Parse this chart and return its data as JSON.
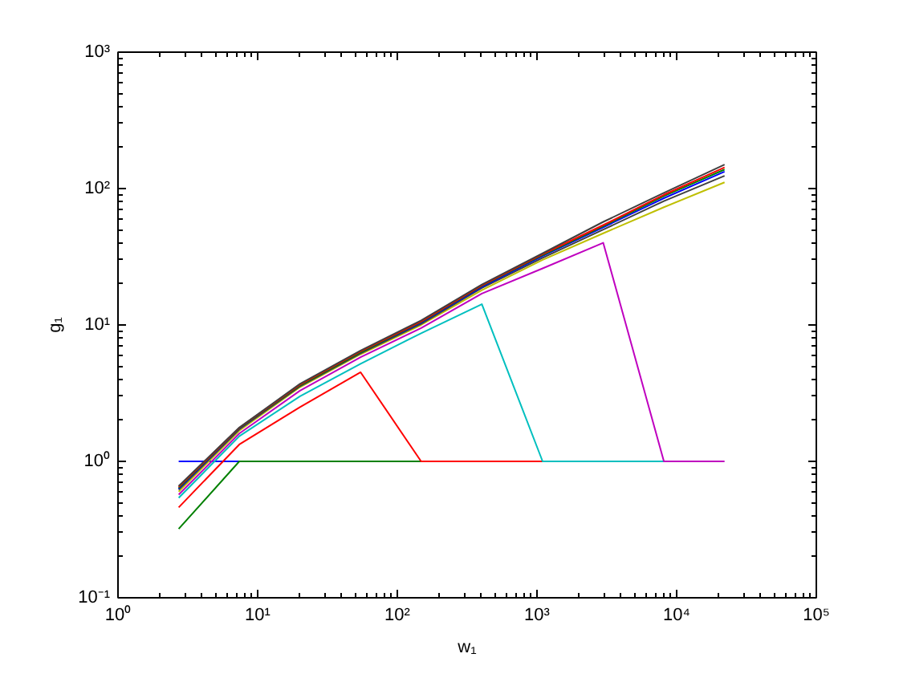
{
  "chart_data": {
    "type": "line",
    "xlabel": "w₁",
    "ylabel": "g₁",
    "log": "xy",
    "grid": false,
    "line_style": "solid",
    "xlim": [
      1,
      100000
    ],
    "ylim": [
      0.1,
      1000
    ],
    "xticks": [
      {
        "value": 1,
        "label": "10⁰"
      },
      {
        "value": 10,
        "label": "10¹"
      },
      {
        "value": 100,
        "label": "10²"
      },
      {
        "value": 1000,
        "label": "10³"
      },
      {
        "value": 10000,
        "label": "10⁴"
      },
      {
        "value": 100000,
        "label": "10⁵"
      }
    ],
    "yticks": [
      {
        "value": 0.1,
        "label": "10⁻¹"
      },
      {
        "value": 1,
        "label": "10⁰"
      },
      {
        "value": 10,
        "label": "10¹"
      },
      {
        "value": 100,
        "label": "10²"
      },
      {
        "value": 1000,
        "label": "10³"
      }
    ],
    "x": [
      2.72,
      7.39,
      20.1,
      54.6,
      148,
      403,
      1097,
      2981,
      8103,
      22026
    ],
    "series": [
      {
        "color": "#0000ff",
        "values": [
          1,
          1,
          null,
          null,
          null,
          null,
          null,
          null,
          null,
          null
        ]
      },
      {
        "color": "#008000",
        "values": [
          0.32,
          1,
          1,
          1,
          1,
          null,
          null,
          null,
          null,
          null
        ]
      },
      {
        "color": "#ff0000",
        "values": [
          0.46,
          1.33,
          2.5,
          4.5,
          1,
          1,
          1,
          null,
          null,
          null
        ]
      },
      {
        "color": "#00bfbf",
        "values": [
          0.54,
          1.53,
          3.0,
          5.2,
          8.7,
          14.2,
          1,
          1,
          1,
          null
        ]
      },
      {
        "color": "#bf00bf",
        "values": [
          0.57,
          1.6,
          3.3,
          5.8,
          9.5,
          17,
          26,
          40,
          1,
          1
        ]
      },
      {
        "color": "#bfbf00",
        "values": [
          0.6,
          1.68,
          3.5,
          6.1,
          10,
          18,
          30,
          47,
          73,
          111
        ]
      },
      {
        "color": "#404040",
        "values": [
          0.62,
          1.72,
          3.55,
          6.2,
          10.2,
          18.7,
          31,
          50,
          81,
          124
        ]
      },
      {
        "color": "#0000ff",
        "values": [
          0.63,
          1.74,
          3.6,
          6.3,
          10.4,
          19,
          32,
          52,
          85,
          133
        ]
      },
      {
        "color": "#008000",
        "values": [
          0.64,
          1.75,
          3.6,
          6.3,
          10.5,
          19.3,
          32.5,
          53,
          88,
          138
        ]
      },
      {
        "color": "#ff0000",
        "values": [
          0.65,
          1.76,
          3.65,
          6.4,
          10.6,
          19.5,
          33,
          54,
          90,
          143
        ]
      },
      {
        "color": "#404040",
        "values": [
          0.66,
          1.77,
          3.7,
          6.5,
          10.8,
          19.8,
          33.5,
          57,
          93,
          150
        ]
      }
    ]
  }
}
